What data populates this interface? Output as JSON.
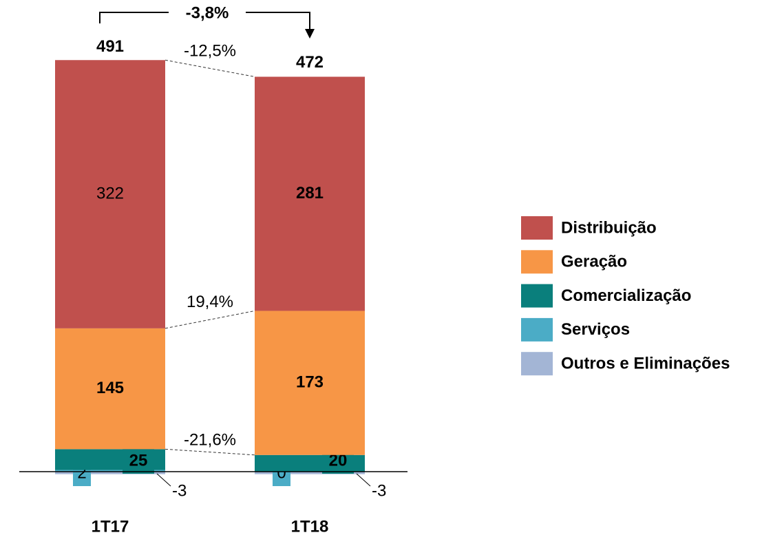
{
  "chart_data": {
    "type": "bar",
    "stacked": true,
    "categories": [
      "1T17",
      "1T18"
    ],
    "series": [
      {
        "name": "Distribuição",
        "color": "#c0504d",
        "values": [
          322,
          281
        ],
        "change": "-12,5%"
      },
      {
        "name": "Geração",
        "color": "#f79646",
        "values": [
          145,
          173
        ],
        "change": "19,4%"
      },
      {
        "name": "Comercialização",
        "color": "#0a7f7c",
        "values": [
          25,
          20
        ],
        "change": "-21,6%"
      },
      {
        "name": "Serviços",
        "color": "#4bacc6",
        "values": [
          2,
          0
        ]
      },
      {
        "name": "Outros e Eliminações",
        "color": "#a3b5d5",
        "values": [
          -3,
          -3
        ]
      }
    ],
    "totals": [
      491,
      472
    ],
    "total_change": "-3,8%",
    "legend": "right"
  }
}
